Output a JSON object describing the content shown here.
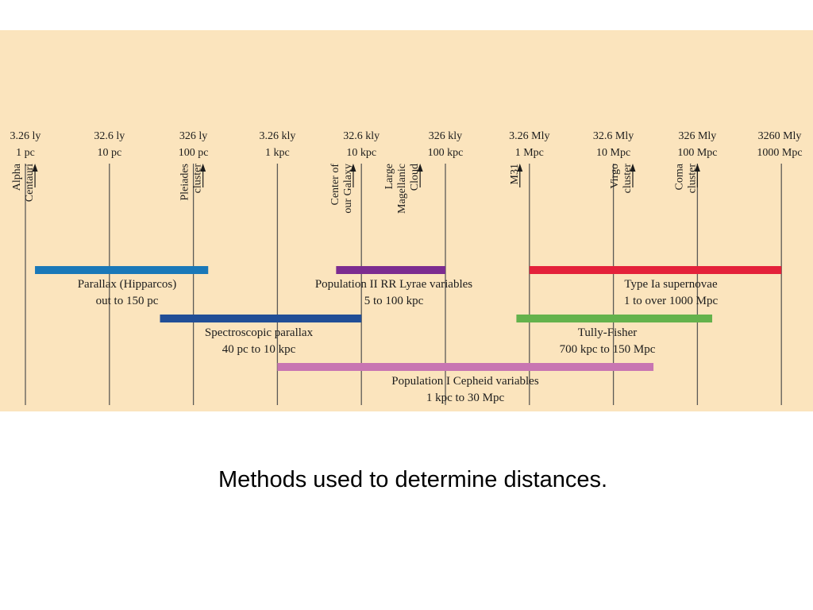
{
  "scale_ticks": [
    {
      "ly": "3.26 ly",
      "pc": "1 pc"
    },
    {
      "ly": "32.6 ly",
      "pc": "10 pc"
    },
    {
      "ly": "326 ly",
      "pc": "100 pc"
    },
    {
      "ly": "3.26 kly",
      "pc": "1 kpc"
    },
    {
      "ly": "32.6 kly",
      "pc": "10 kpc"
    },
    {
      "ly": "326 kly",
      "pc": "100 kpc"
    },
    {
      "ly": "3.26 Mly",
      "pc": "1 Mpc"
    },
    {
      "ly": "32.6 Mly",
      "pc": "10 Mpc"
    },
    {
      "ly": "326 Mly",
      "pc": "100 Mpc"
    },
    {
      "ly": "3260 Mly",
      "pc": "1000 Mpc"
    }
  ],
  "objects": [
    {
      "name": "alpha-centauri",
      "distance_pc": 1.3,
      "lines": [
        "Alpha",
        "Centauri"
      ]
    },
    {
      "name": "pleiades-cluster",
      "distance_pc": 130,
      "lines": [
        "Pleiades",
        "cluster"
      ]
    },
    {
      "name": "center-of-our-galaxy",
      "distance_pc": 8000,
      "lines": [
        "Center of",
        "our Galaxy"
      ]
    },
    {
      "name": "large-magellanic-cloud",
      "distance_pc": 50000,
      "lines": [
        "Large",
        "Magellanic",
        "Cloud"
      ]
    },
    {
      "name": "m31",
      "distance_pc": 770000,
      "lines": [
        "M31"
      ]
    },
    {
      "name": "virgo-cluster",
      "distance_pc": 17000000,
      "lines": [
        "Virgo",
        "cluster"
      ]
    },
    {
      "name": "coma-cluster",
      "distance_pc": 100000000,
      "lines": [
        "Coma",
        "cluster"
      ]
    }
  ],
  "methods": [
    {
      "name": "parallax-hipparcos",
      "color": "#1a78b8",
      "from_pc": 1.3,
      "to_pc": 150,
      "label": "Parallax (Hipparcos)",
      "range": "out to 150 pc"
    },
    {
      "name": "population-ii-rr-lyrae",
      "color": "#7c2c90",
      "from_pc": 5000,
      "to_pc": 100000,
      "label": "Population II RR Lyrae variables",
      "range": "5 to 100 kpc"
    },
    {
      "name": "type-ia-supernovae",
      "color": "#e4213a",
      "from_pc": 1000000,
      "to_pc": 1000000000,
      "label": "Type Ia supernovae",
      "range": "1 to over 1000 Mpc"
    },
    {
      "name": "spectroscopic-parallax",
      "color": "#214e96",
      "from_pc": 40,
      "to_pc": 10000,
      "label": "Spectroscopic parallax",
      "range": "40 pc to 10 kpc"
    },
    {
      "name": "tully-fisher",
      "color": "#64b24c",
      "from_pc": 700000,
      "to_pc": 150000000,
      "label": "Tully-Fisher",
      "range": "700 kpc to 150 Mpc"
    },
    {
      "name": "population-i-cepheid",
      "color": "#c875b2",
      "from_pc": 1000,
      "to_pc": 30000000,
      "label": "Population I Cepheid variables",
      "range": "1 kpc to 30 Mpc"
    }
  ],
  "caption": "Methods used to determine distances."
}
